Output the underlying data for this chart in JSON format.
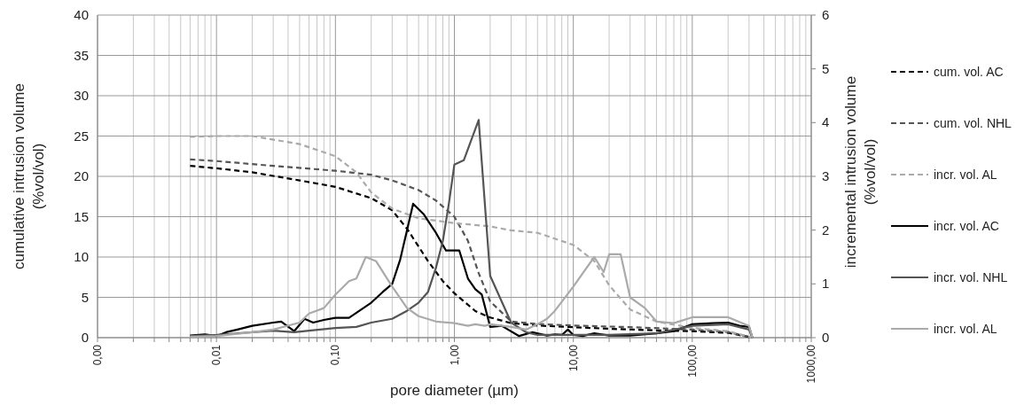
{
  "chart_data": {
    "type": "line",
    "xlabel": "pore diameter (µm)",
    "ylabel": "cumulative intrusion volume (%vol/vol)",
    "y2label": "incremental intrusion volume (%vol/vol)",
    "log": "x",
    "grid": true,
    "legend": "right",
    "xlim": [
      0.001,
      1000
    ],
    "ylim": [
      0,
      40
    ],
    "y2lim": [
      0,
      6
    ],
    "xticks": [
      {
        "value": 0.001,
        "label": "0,00"
      },
      {
        "value": 0.002,
        "label": null
      },
      {
        "value": 0.003,
        "label": null
      },
      {
        "value": 0.004,
        "label": null
      },
      {
        "value": 0.005,
        "label": null
      },
      {
        "value": 0.006,
        "label": null
      },
      {
        "value": 0.007,
        "label": null
      },
      {
        "value": 0.008,
        "label": null
      },
      {
        "value": 0.009,
        "label": null
      },
      {
        "value": 0.01,
        "label": "0,01"
      },
      {
        "value": 0.02,
        "label": null
      },
      {
        "value": 0.03,
        "label": null
      },
      {
        "value": 0.04,
        "label": null
      },
      {
        "value": 0.05,
        "label": null
      },
      {
        "value": 0.06,
        "label": null
      },
      {
        "value": 0.07,
        "label": null
      },
      {
        "value": 0.08,
        "label": null
      },
      {
        "value": 0.09,
        "label": null
      },
      {
        "value": 0.1,
        "label": "0,10"
      },
      {
        "value": 0.2,
        "label": null
      },
      {
        "value": 0.3,
        "label": null
      },
      {
        "value": 0.4,
        "label": null
      },
      {
        "value": 0.5,
        "label": null
      },
      {
        "value": 0.6,
        "label": null
      },
      {
        "value": 0.7,
        "label": null
      },
      {
        "value": 0.8,
        "label": null
      },
      {
        "value": 0.9,
        "label": null
      },
      {
        "value": 1,
        "label": "1,00"
      },
      {
        "value": 2,
        "label": null
      },
      {
        "value": 3,
        "label": null
      },
      {
        "value": 4,
        "label": null
      },
      {
        "value": 5,
        "label": null
      },
      {
        "value": 6,
        "label": null
      },
      {
        "value": 7,
        "label": null
      },
      {
        "value": 8,
        "label": null
      },
      {
        "value": 9,
        "label": null
      },
      {
        "value": 10,
        "label": "10,00"
      },
      {
        "value": 20,
        "label": null
      },
      {
        "value": 30,
        "label": null
      },
      {
        "value": 40,
        "label": null
      },
      {
        "value": 50,
        "label": null
      },
      {
        "value": 60,
        "label": null
      },
      {
        "value": 70,
        "label": null
      },
      {
        "value": 80,
        "label": null
      },
      {
        "value": 90,
        "label": null
      },
      {
        "value": 100,
        "label": "100,00"
      },
      {
        "value": 200,
        "label": null
      },
      {
        "value": 300,
        "label": null
      },
      {
        "value": 400,
        "label": null
      },
      {
        "value": 500,
        "label": null
      },
      {
        "value": 600,
        "label": null
      },
      {
        "value": 700,
        "label": null
      },
      {
        "value": 800,
        "label": null
      },
      {
        "value": 900,
        "label": null
      },
      {
        "value": 1000,
        "label": "1000,00"
      }
    ],
    "yticks": [
      0,
      5,
      10,
      15,
      20,
      25,
      30,
      35,
      40
    ],
    "y2ticks": [
      0,
      1,
      2,
      3,
      4,
      5,
      6
    ],
    "series": [
      {
        "name": "cum. vol. AC",
        "color": "#000000",
        "line_style": "dashed",
        "x": [
          0.006,
          0.01,
          0.02,
          0.05,
          0.1,
          0.2,
          0.3,
          0.4,
          0.6,
          0.8,
          1,
          1.5,
          2,
          3,
          5,
          10,
          20,
          50,
          100,
          200,
          320
        ],
        "values": [
          21.3,
          21,
          20.5,
          19.5,
          18.7,
          17.3,
          15.8,
          13.5,
          9.5,
          7,
          5.5,
          3.3,
          2.5,
          1.8,
          1.5,
          1.3,
          1.1,
          0.9,
          0.8,
          0.6,
          0
        ]
      },
      {
        "name": "cum. vol. NHL",
        "color": "#555555",
        "line_style": "dashed",
        "x": [
          0.006,
          0.01,
          0.03,
          0.1,
          0.2,
          0.3,
          0.5,
          0.7,
          1,
          1.3,
          1.6,
          2,
          3,
          5,
          10,
          30,
          100,
          200,
          320
        ],
        "values": [
          22.1,
          21.9,
          21.3,
          20.7,
          20.2,
          19.5,
          18.3,
          17,
          15,
          12,
          8,
          4.5,
          2,
          1.7,
          1.5,
          1.3,
          1,
          0.7,
          0
        ]
      },
      {
        "name": "incr. vol. AL",
        "color": "#aaaaaa",
        "line_style": "dashed",
        "x": [
          0.006,
          0.01,
          0.02,
          0.05,
          0.1,
          0.15,
          0.2,
          0.3,
          0.5,
          1,
          2,
          3,
          5,
          10,
          15,
          20,
          30,
          50,
          100,
          200,
          320
        ],
        "values": [
          24.9,
          25,
          25,
          24,
          22.5,
          20.5,
          18,
          16,
          14.8,
          14.2,
          13.8,
          13.3,
          13,
          11.5,
          9.5,
          6.5,
          3.5,
          2,
          1.2,
          0.8,
          0
        ]
      },
      {
        "name": "incr. vol. AC",
        "color": "#000000",
        "line_style": "solid",
        "axis": "y2",
        "x": [
          0.006,
          0.008,
          0.01,
          0.012,
          0.015,
          0.02,
          0.03,
          0.035,
          0.045,
          0.055,
          0.065,
          0.08,
          0.1,
          0.13,
          0.2,
          0.25,
          0.3,
          0.35,
          0.4,
          0.45,
          0.55,
          0.7,
          0.85,
          1.1,
          1.3,
          1.5,
          1.7,
          2,
          2.5,
          3.5,
          4.5,
          6,
          7,
          8,
          9,
          10,
          12,
          15,
          20,
          30,
          50,
          70,
          100,
          150,
          200,
          250,
          300,
          320
        ],
        "values": [
          0.04,
          0.06,
          0.03,
          0.1,
          0.15,
          0.22,
          0.28,
          0.3,
          0.12,
          0.35,
          0.28,
          0.33,
          0.37,
          0.37,
          0.65,
          0.85,
          1,
          1.45,
          2,
          2.49,
          2.3,
          1.95,
          1.62,
          1.62,
          1.1,
          0.9,
          0.8,
          0.2,
          0.22,
          0.03,
          0.1,
          0.04,
          0.06,
          0.05,
          0.15,
          0.05,
          0.03,
          0.08,
          0.04,
          0.04,
          0.08,
          0.12,
          0.25,
          0.27,
          0.28,
          0.22,
          0.2,
          0
        ]
      },
      {
        "name": "incr. vol. NHL",
        "color": "#555555",
        "line_style": "solid",
        "axis": "y2",
        "x": [
          0.006,
          0.01,
          0.02,
          0.03,
          0.045,
          0.06,
          0.1,
          0.15,
          0.2,
          0.3,
          0.4,
          0.5,
          0.6,
          0.7,
          0.8,
          0.9,
          1,
          1.2,
          1.6,
          2,
          3,
          4,
          5,
          10,
          20,
          50,
          100,
          200,
          300,
          320
        ],
        "values": [
          0.03,
          0.05,
          0.1,
          0.13,
          0.1,
          0.13,
          0.18,
          0.2,
          0.28,
          0.35,
          0.5,
          0.65,
          0.85,
          1.3,
          1.8,
          2.5,
          3.22,
          3.3,
          4.05,
          1.15,
          0.28,
          0.1,
          0.05,
          0.05,
          0.05,
          0.08,
          0.22,
          0.25,
          0.15,
          0
        ]
      },
      {
        "name": "incr. vol. AL",
        "color": "#aaaaaa",
        "line_style": "solid",
        "axis": "y2",
        "x": [
          0.006,
          0.01,
          0.02,
          0.03,
          0.05,
          0.06,
          0.08,
          0.1,
          0.13,
          0.15,
          0.18,
          0.22,
          0.3,
          0.4,
          0.5,
          0.7,
          1,
          1.3,
          1.5,
          1.8,
          2,
          3,
          4,
          5,
          6,
          7,
          10,
          15,
          18,
          20,
          25,
          30,
          40,
          50,
          70,
          100,
          200,
          300,
          320
        ],
        "values": [
          0.02,
          0.03,
          0.1,
          0.15,
          0.28,
          0.45,
          0.55,
          0.8,
          1.05,
          1.1,
          1.5,
          1.42,
          0.95,
          0.55,
          0.4,
          0.3,
          0.27,
          0.22,
          0.25,
          0.22,
          0.25,
          0.2,
          0.15,
          0.25,
          0.35,
          0.5,
          0.95,
          1.5,
          1.22,
          1.55,
          1.55,
          0.75,
          0.55,
          0.3,
          0.27,
          0.38,
          0.38,
          0.22,
          0
        ]
      }
    ]
  }
}
